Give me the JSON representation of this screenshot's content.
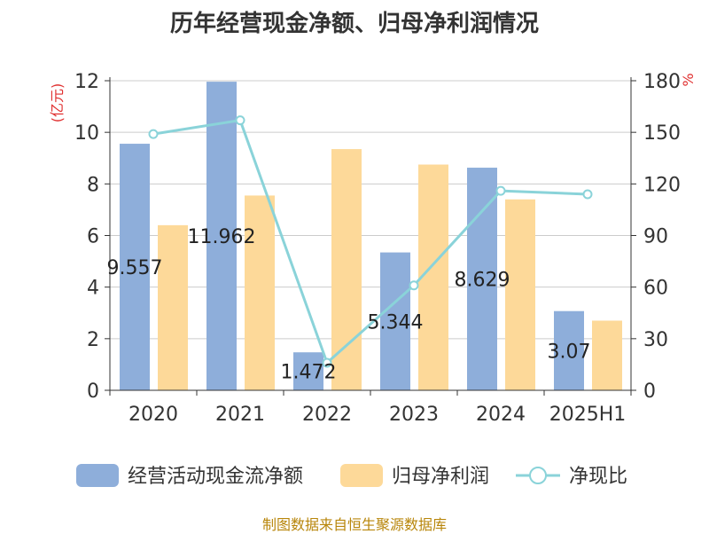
{
  "chart_data": {
    "type": "bar",
    "title": "历年经营现金净额、归母净利润情况",
    "categories": [
      "2020",
      "2021",
      "2022",
      "2023",
      "2024",
      "2025H1"
    ],
    "series": [
      {
        "name": "经营活动现金流净额",
        "kind": "bar",
        "axis": "left",
        "values": [
          9.557,
          11.962,
          1.472,
          5.344,
          8.629,
          3.07
        ],
        "labels": [
          "9.557",
          "11.962",
          "1.472",
          "5.344",
          "8.629",
          "3.07"
        ]
      },
      {
        "name": "归母净利润",
        "kind": "bar",
        "axis": "left",
        "values": [
          6.4,
          7.55,
          9.35,
          8.75,
          7.4,
          2.7
        ]
      },
      {
        "name": "净现比",
        "kind": "line",
        "axis": "right",
        "values": [
          149,
          157,
          16,
          61,
          116,
          114
        ]
      }
    ],
    "ylabel_left": "(亿元)",
    "ylabel_right": "%",
    "ylim_left": [
      0,
      12
    ],
    "yticks_left": [
      "0",
      "2",
      "4",
      "6",
      "8",
      "10",
      "12"
    ],
    "ylim_right": [
      0,
      180
    ],
    "yticks_right": [
      "0",
      "30",
      "60",
      "90",
      "120",
      "150",
      "180"
    ],
    "grid": true,
    "legend_position": "bottom",
    "colors": {
      "bar1": "#8EAEDA",
      "bar2": "#FDD999",
      "line": "#8AD3D9",
      "grid": "#CCCCCC",
      "axis_label": "#E03030"
    }
  },
  "source": "制图数据来自恒生聚源数据库"
}
